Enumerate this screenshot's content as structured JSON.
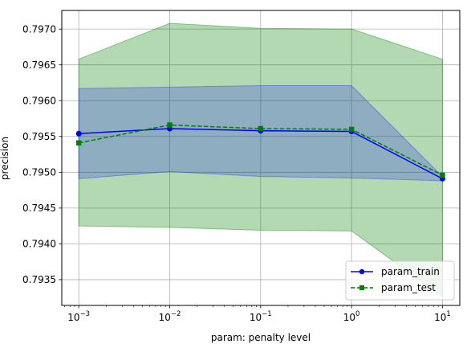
{
  "chart_data": {
    "type": "line",
    "title": "",
    "xlabel": "param: penalty level",
    "ylabel": "precision",
    "x": [
      0.001,
      0.01,
      0.1,
      1,
      10
    ],
    "xscale": "log",
    "xlim": [
      0.00065,
      15.5
    ],
    "ylim": [
      0.79314,
      0.79726
    ],
    "xticks": [
      {
        "base": "10",
        "exp": "−3"
      },
      {
        "base": "10",
        "exp": "−2"
      },
      {
        "base": "10",
        "exp": "−1"
      },
      {
        "base": "10",
        "exp": "0"
      },
      {
        "base": "10",
        "exp": "1"
      }
    ],
    "yticks": [
      0.7935,
      0.794,
      0.7945,
      0.795,
      0.7955,
      0.796,
      0.7965,
      0.797
    ],
    "ytick_labels": [
      "0.7935",
      "0.7940",
      "0.7945",
      "0.7950",
      "0.7955",
      "0.7960",
      "0.7965",
      "0.7970"
    ],
    "grid": true,
    "legend_position": "lower-right",
    "series": [
      {
        "name": "param_train",
        "color": "#0000ff",
        "linestyle": "solid",
        "marker": "circle",
        "values": [
          0.79554,
          0.79561,
          0.79558,
          0.79557,
          0.79491
        ],
        "band": {
          "lower": [
            0.79491,
            0.79501,
            0.79494,
            0.79492,
            0.79488
          ],
          "upper": [
            0.79617,
            0.79619,
            0.79621,
            0.79621,
            0.79494
          ],
          "color": "#0000ff",
          "opacity": 0.2
        }
      },
      {
        "name": "param_test",
        "color": "#008000",
        "linestyle": "dashed",
        "marker": "square",
        "values": [
          0.79541,
          0.79566,
          0.79561,
          0.7956,
          0.79496
        ],
        "band": {
          "lower": [
            0.79425,
            0.79423,
            0.79419,
            0.79418,
            0.79326
          ],
          "upper": [
            0.79658,
            0.79708,
            0.79701,
            0.797,
            0.79658
          ],
          "color": "#008000",
          "opacity": 0.3
        }
      }
    ]
  }
}
